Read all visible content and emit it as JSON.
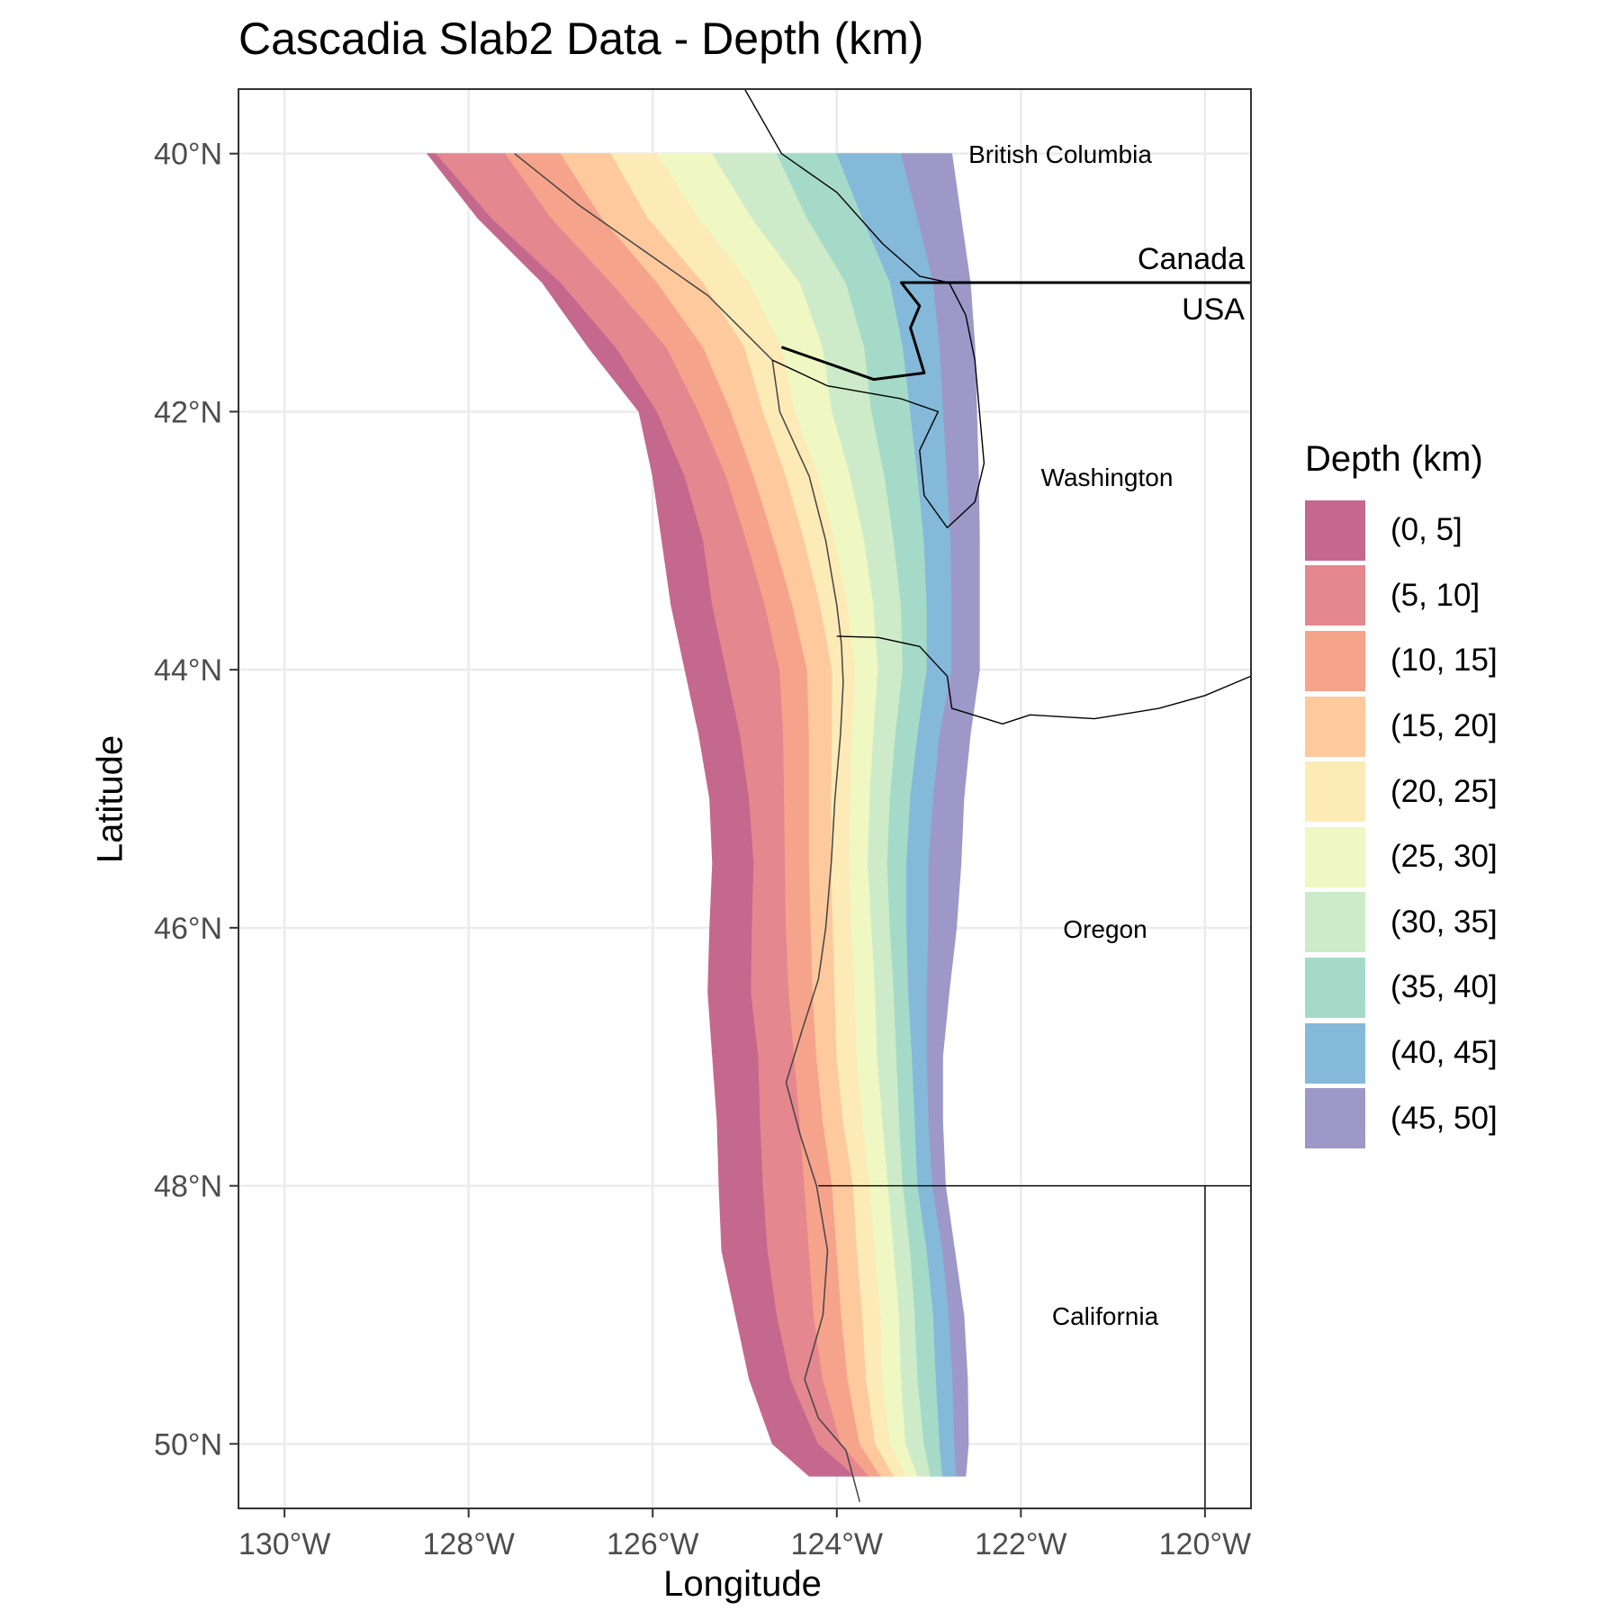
{
  "title": "Cascadia Slab2 Data - Depth (km)",
  "axes": {
    "x_title": "Longitude",
    "y_title": "Latitude",
    "x_ticks": [
      "130°W",
      "128°W",
      "126°W",
      "124°W",
      "122°W",
      "120°W"
    ],
    "y_ticks": [
      "50°N",
      "48°N",
      "46°N",
      "44°N",
      "42°N",
      "40°N"
    ]
  },
  "legend": {
    "title": "Depth (km)",
    "items": [
      {
        "label": "(0, 5]",
        "color": "#C4688E"
      },
      {
        "label": "(5, 10]",
        "color": "#E4878F"
      },
      {
        "label": "(10, 15]",
        "color": "#F6A38B"
      },
      {
        "label": "(15, 20]",
        "color": "#FDC99D"
      },
      {
        "label": "(20, 25]",
        "color": "#FDEBB7"
      },
      {
        "label": "(25, 30]",
        "color": "#EFF7C3"
      },
      {
        "label": "(30, 35]",
        "color": "#CDEBC8"
      },
      {
        "label": "(35, 40]",
        "color": "#A4DAC7"
      },
      {
        "label": "(40, 45]",
        "color": "#84B9D9"
      },
      {
        "label": "(45, 50]",
        "color": "#9D98C8"
      }
    ]
  },
  "map_labels": {
    "british_columbia": "British Columbia",
    "canada": "Canada",
    "usa": "USA",
    "washington": "Washington",
    "oregon": "Oregon",
    "california": "California"
  },
  "chart_data": {
    "type": "heatmap",
    "title": "Cascadia Slab2 Data - Depth (km)",
    "xlabel": "Longitude",
    "ylabel": "Latitude",
    "xlim": [
      -130.5,
      -119.5
    ],
    "ylim": [
      39.5,
      50.5
    ],
    "x_ticks": [
      -130,
      -128,
      -126,
      -124,
      -122,
      -120
    ],
    "y_ticks": [
      40,
      42,
      44,
      46,
      48,
      50
    ],
    "grid": true,
    "legend_position": "right",
    "depth_bins": [
      "(0, 5]",
      "(5, 10]",
      "(10, 15]",
      "(15, 20]",
      "(20, 25]",
      "(25, 30]",
      "(30, 35]",
      "(35, 40]",
      "(40, 45]",
      "(45, 50]"
    ],
    "contour_lat": [
      50.0,
      49.5,
      49.0,
      48.5,
      48.0,
      47.5,
      47.0,
      46.5,
      46.0,
      45.5,
      45.0,
      44.5,
      44.0,
      43.5,
      43.0,
      42.5,
      42.0,
      41.5,
      41.0,
      40.5,
      40.0,
      39.75
    ],
    "contour_lon": [
      [
        -128.35,
        -127.75,
        -127.0,
        -126.4,
        -125.95,
        -125.65,
        -125.45,
        -125.35,
        -125.2,
        -125.05,
        -124.95,
        -124.9,
        -124.92,
        -124.93,
        -124.85,
        -124.83,
        -124.8,
        -124.75,
        -124.65,
        -124.5,
        -124.2,
        -123.8
      ],
      [
        -127.6,
        -127.1,
        -126.45,
        -125.85,
        -125.5,
        -125.2,
        -124.98,
        -124.78,
        -124.62,
        -124.58,
        -124.57,
        -124.56,
        -124.55,
        -124.52,
        -124.46,
        -124.4,
        -124.35,
        -124.3,
        -124.25,
        -124.15,
        -123.95,
        -123.65
      ],
      [
        -127.0,
        -126.55,
        -125.95,
        -125.45,
        -125.15,
        -124.9,
        -124.68,
        -124.48,
        -124.32,
        -124.3,
        -124.3,
        -124.3,
        -124.28,
        -124.26,
        -124.22,
        -124.15,
        -124.05,
        -124.0,
        -123.95,
        -123.88,
        -123.75,
        -123.52
      ],
      [
        -126.45,
        -126.05,
        -125.45,
        -125.0,
        -124.8,
        -124.55,
        -124.35,
        -124.18,
        -124.05,
        -124.05,
        -124.06,
        -124.06,
        -124.04,
        -124.02,
        -124.0,
        -123.93,
        -123.82,
        -123.78,
        -123.72,
        -123.68,
        -123.58,
        -123.38
      ],
      [
        -125.95,
        -125.5,
        -124.95,
        -124.6,
        -124.45,
        -124.2,
        -124.02,
        -123.88,
        -123.8,
        -123.83,
        -123.85,
        -123.86,
        -123.84,
        -123.8,
        -123.78,
        -123.72,
        -123.64,
        -123.58,
        -123.52,
        -123.5,
        -123.42,
        -123.25
      ],
      [
        -125.35,
        -124.92,
        -124.4,
        -124.15,
        -124.05,
        -123.85,
        -123.7,
        -123.6,
        -123.55,
        -123.6,
        -123.64,
        -123.66,
        -123.62,
        -123.58,
        -123.56,
        -123.5,
        -123.44,
        -123.38,
        -123.32,
        -123.3,
        -123.25,
        -123.12
      ],
      [
        -124.65,
        -124.32,
        -123.9,
        -123.7,
        -123.62,
        -123.48,
        -123.38,
        -123.3,
        -123.28,
        -123.36,
        -123.42,
        -123.45,
        -123.42,
        -123.38,
        -123.35,
        -123.32,
        -123.28,
        -123.2,
        -123.15,
        -123.12,
        -123.05,
        -122.98
      ],
      [
        -124.0,
        -123.72,
        -123.42,
        -123.28,
        -123.2,
        -123.12,
        -123.05,
        -123.02,
        -123.02,
        -123.12,
        -123.2,
        -123.24,
        -123.24,
        -123.22,
        -123.18,
        -123.15,
        -123.12,
        -123.02,
        -122.95,
        -122.92,
        -122.88,
        -122.85
      ],
      [
        -123.3,
        -123.12,
        -122.95,
        -122.88,
        -122.84,
        -122.8,
        -122.76,
        -122.75,
        -122.75,
        -122.88,
        -122.95,
        -123.0,
        -123.0,
        -123.02,
        -123.02,
        -123.0,
        -122.96,
        -122.85,
        -122.78,
        -122.74,
        -122.72,
        -122.7
      ],
      [
        -122.75,
        -122.65,
        -122.55,
        -122.5,
        -122.48,
        -122.46,
        -122.45,
        -122.45,
        -122.45,
        -122.55,
        -122.62,
        -122.65,
        -122.7,
        -122.78,
        -122.85,
        -122.85,
        -122.82,
        -122.72,
        -122.62,
        -122.58,
        -122.57,
        -122.6
      ]
    ],
    "western_edge_lon": [
      -128.45,
      -127.9,
      -127.2,
      -126.7,
      -126.15,
      -126.0,
      -125.9,
      -125.8,
      -125.65,
      -125.5,
      -125.38,
      -125.35,
      -125.38,
      -125.4,
      -125.35,
      -125.3,
      -125.28,
      -125.25,
      -125.1,
      -124.95,
      -124.7,
      -124.3
    ]
  }
}
